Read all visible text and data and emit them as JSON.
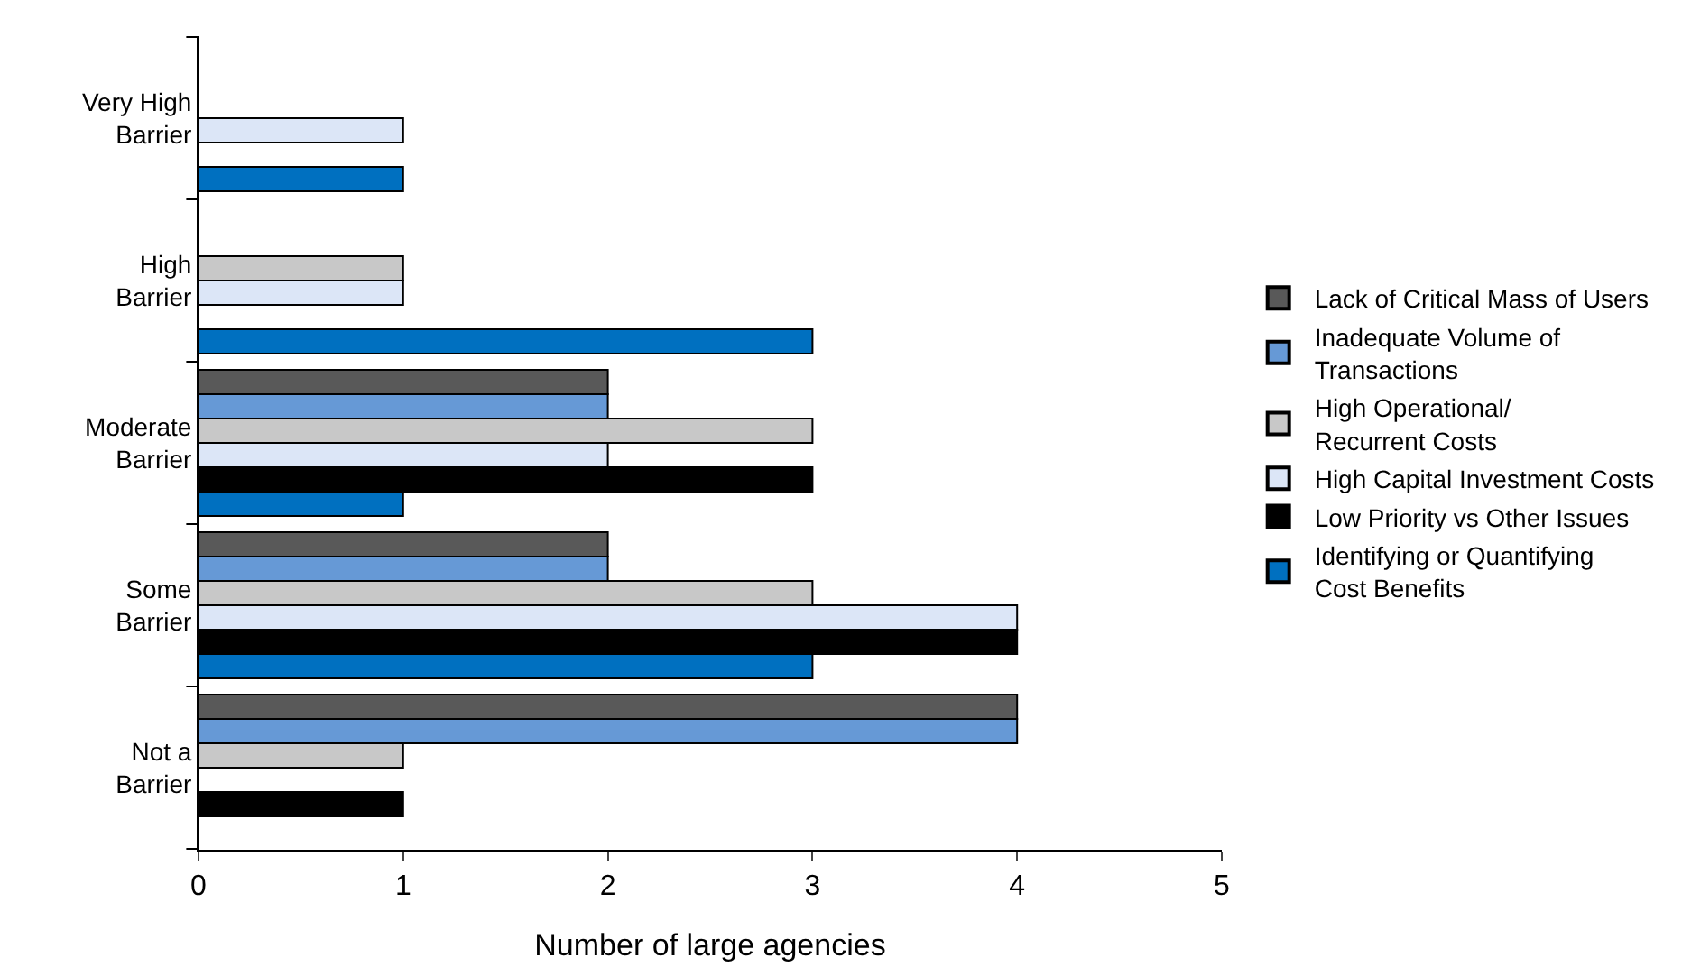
{
  "chart_data": {
    "type": "bar",
    "orientation": "horizontal",
    "xlabel": "Number of large agencies",
    "categories": [
      "Very High\nBarrier",
      "High\nBarrier",
      "Moderate\nBarrier",
      "Some\nBarrier",
      "Not a\nBarrier"
    ],
    "series": [
      {
        "name": "Lack of Critical Mass of Users",
        "color": "#595959",
        "values": [
          0,
          0,
          2,
          2,
          4
        ]
      },
      {
        "name": "Inadequate Volume of\nTransactions",
        "color": "#6699d6",
        "values": [
          0,
          0,
          2,
          2,
          4
        ]
      },
      {
        "name": "High Operational/\nRecurrent Costs",
        "color": "#c8c8c8",
        "values": [
          0,
          1,
          3,
          3,
          1
        ]
      },
      {
        "name": "High Capital Investment Costs",
        "color": "#dce6f7",
        "values": [
          1,
          1,
          2,
          4,
          0
        ]
      },
      {
        "name": "Low Priority vs Other Issues",
        "color": "#000000",
        "values": [
          0,
          0,
          3,
          4,
          1
        ]
      },
      {
        "name": "Identifying or Quantifying\nCost Benefits",
        "color": "#0070c0",
        "values": [
          1,
          3,
          1,
          3,
          0
        ]
      }
    ],
    "xlim": [
      0,
      5
    ],
    "xticks": [
      0,
      1,
      2,
      3,
      4,
      5
    ],
    "legend": "right"
  }
}
